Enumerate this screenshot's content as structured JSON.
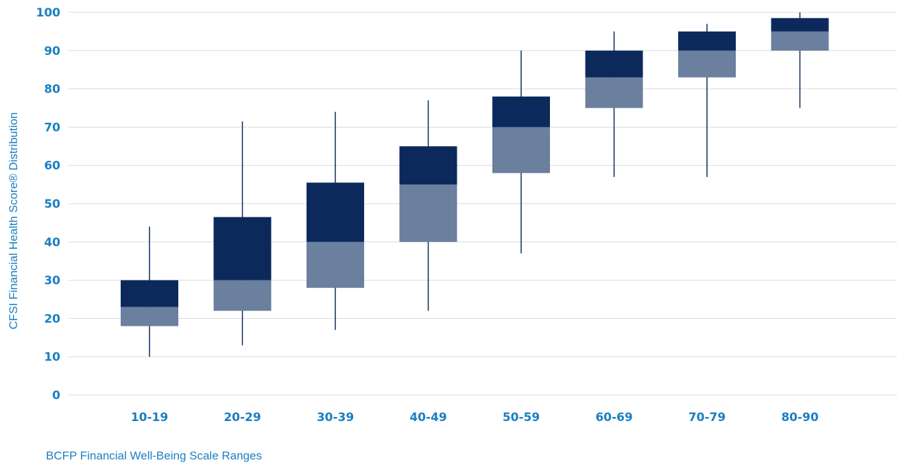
{
  "chart_data": {
    "type": "boxplot",
    "xlabel": "BCFP Financial Well-Being Scale Ranges",
    "ylabel": "CFSI Financial Health Score® Distribution",
    "ylim": [
      0,
      100
    ],
    "yticks": [
      0,
      10,
      20,
      30,
      40,
      50,
      60,
      70,
      80,
      90,
      100
    ],
    "grid": true,
    "categories": [
      "10-19",
      "20-29",
      "30-39",
      "40-49",
      "50-59",
      "60-69",
      "70-79",
      "80-90"
    ],
    "boxes": [
      {
        "category": "10-19",
        "min": 10,
        "q1": 18,
        "median": 23,
        "q3": 30,
        "max": 44
      },
      {
        "category": "20-29",
        "min": 13,
        "q1": 22,
        "median": 30,
        "q3": 46.5,
        "max": 71.5
      },
      {
        "category": "30-39",
        "min": 17,
        "q1": 28,
        "median": 40,
        "q3": 55.5,
        "max": 74
      },
      {
        "category": "40-49",
        "min": 22,
        "q1": 40,
        "median": 55,
        "q3": 65,
        "max": 77
      },
      {
        "category": "50-59",
        "min": 37,
        "q1": 58,
        "median": 70,
        "q3": 78,
        "max": 90
      },
      {
        "category": "60-69",
        "min": 57,
        "q1": 75,
        "median": 83,
        "q3": 90,
        "max": 95
      },
      {
        "category": "70-79",
        "min": 57,
        "q1": 83,
        "median": 90,
        "q3": 95,
        "max": 97
      },
      {
        "category": "80-90",
        "min": 75,
        "q1": 90,
        "median": 95,
        "q3": 98.5,
        "max": 100
      }
    ],
    "colors": {
      "upper_box": "#0b2a5b",
      "lower_box": "#6b7f9e",
      "whisker": "#0b2a5b",
      "tick_label": "#1a7fc1",
      "axis_title": "#1a7fc1",
      "grid": "#d9d9d9"
    }
  }
}
